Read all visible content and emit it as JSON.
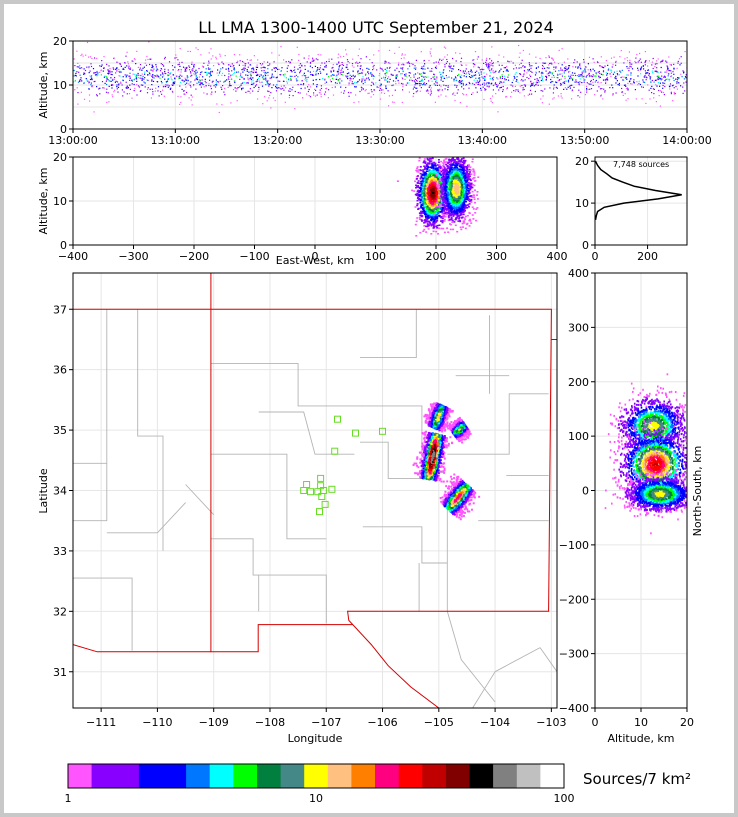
{
  "title": "LL LMA 1300-1400 UTC September 21, 2024",
  "colors": {
    "state_border": "#d40000",
    "county_border": "#b4b4b4",
    "station_marker": "#66dd22",
    "density_profile": "#000000"
  },
  "colorbar": {
    "label": "Sources/7 km²",
    "ticks": [
      "1",
      "10",
      "100"
    ],
    "colors": [
      "#ff55ff",
      "#8800ff",
      "#8800ff",
      "#0000ff",
      "#0000ff",
      "#0077ff",
      "#00ffff",
      "#00ff00",
      "#007f3f",
      "#448888",
      "#ffff00",
      "#ffc080",
      "#ff8000",
      "#ff0080",
      "#ff0000",
      "#c00000",
      "#800000",
      "#000000",
      "#808080",
      "#c0c0c0",
      "#ffffff"
    ]
  },
  "source_count_label": "7,748 sources",
  "chart_data": [
    {
      "id": "time-height",
      "type": "scatter",
      "xlabel": "",
      "ylabel": "Altitude, km",
      "xlim": [
        "13:00:00",
        "14:00:00"
      ],
      "ylim": [
        0,
        20
      ],
      "xticks": [
        "13:00:00",
        "13:10:00",
        "13:20:00",
        "13:30:00",
        "13:40:00",
        "13:50:00",
        "14:00:00"
      ],
      "yticks": [
        "0",
        "10",
        "20"
      ],
      "band_center_km": 12,
      "band_spread_km": 4
    },
    {
      "id": "east-west-altitude",
      "type": "heatmap",
      "xlabel": "East-West, km",
      "ylabel": "Altitude, km",
      "xlim": [
        -400,
        400
      ],
      "ylim": [
        0,
        20
      ],
      "xticks": [
        "−400",
        "−300",
        "−200",
        "−100",
        "0",
        "100",
        "200",
        "300",
        "400"
      ],
      "yticks": [
        "0",
        "10",
        "20"
      ],
      "clusters": [
        {
          "x": 193,
          "y": 12,
          "sx": 12,
          "sy": 3.5,
          "peak": 1.0
        },
        {
          "x": 232,
          "y": 13,
          "sx": 12,
          "sy": 3.5,
          "peak": 0.7
        }
      ]
    },
    {
      "id": "altitude-histogram",
      "type": "line",
      "xlabel": "",
      "ylabel": "",
      "xlim": [
        0,
        350
      ],
      "ylim": [
        0,
        21
      ],
      "xticks": [
        "0",
        "200"
      ],
      "yticks": [
        "0",
        "10",
        "20"
      ],
      "profile": [
        {
          "alt": 6,
          "count": 2
        },
        {
          "alt": 7,
          "count": 5
        },
        {
          "alt": 8,
          "count": 10
        },
        {
          "alt": 9,
          "count": 35
        },
        {
          "alt": 10,
          "count": 110
        },
        {
          "alt": 11,
          "count": 240
        },
        {
          "alt": 12,
          "count": 330
        },
        {
          "alt": 13,
          "count": 230
        },
        {
          "alt": 14,
          "count": 150
        },
        {
          "alt": 15,
          "count": 105
        },
        {
          "alt": 16,
          "count": 65
        },
        {
          "alt": 17,
          "count": 45
        },
        {
          "alt": 18,
          "count": 22
        },
        {
          "alt": 19,
          "count": 10
        },
        {
          "alt": 20,
          "count": 2
        }
      ]
    },
    {
      "id": "plan-view",
      "type": "heatmap",
      "xlabel": "Longitude",
      "ylabel": "Latitude",
      "xlim": [
        -111.5,
        -102.9
      ],
      "ylim": [
        30.4,
        37.6
      ],
      "xticks": [
        "−111",
        "−110",
        "−109",
        "−108",
        "−107",
        "−106",
        "−105",
        "−104",
        "−103"
      ],
      "yticks": [
        "31",
        "32",
        "33",
        "34",
        "35",
        "36",
        "37"
      ],
      "stations": [
        {
          "lon": -106.8,
          "lat": 35.18
        },
        {
          "lon": -106.48,
          "lat": 34.95
        },
        {
          "lon": -106.0,
          "lat": 34.98
        },
        {
          "lon": -106.85,
          "lat": 34.65
        },
        {
          "lon": -107.1,
          "lat": 34.2
        },
        {
          "lon": -107.35,
          "lat": 34.1
        },
        {
          "lon": -107.1,
          "lat": 34.08
        },
        {
          "lon": -107.4,
          "lat": 34.0
        },
        {
          "lon": -107.28,
          "lat": 33.98
        },
        {
          "lon": -107.15,
          "lat": 33.98
        },
        {
          "lon": -107.05,
          "lat": 34.0
        },
        {
          "lon": -106.9,
          "lat": 34.02
        },
        {
          "lon": -107.08,
          "lat": 33.9
        },
        {
          "lon": -107.02,
          "lat": 33.77
        },
        {
          "lon": -107.12,
          "lat": 33.65
        }
      ],
      "cells": [
        {
          "x1": -104.95,
          "y1": 35.42,
          "x2": -105.1,
          "y2": 35.05,
          "w": 0.08,
          "peak": 0.6
        },
        {
          "x1": -104.55,
          "y1": 35.1,
          "x2": -104.75,
          "y2": 34.95,
          "w": 0.07,
          "peak": 0.55
        },
        {
          "x1": -105.05,
          "y1": 34.95,
          "x2": -105.2,
          "y2": 34.2,
          "w": 0.1,
          "peak": 1.0
        },
        {
          "x1": -104.5,
          "y1": 34.1,
          "x2": -104.85,
          "y2": 33.7,
          "w": 0.1,
          "peak": 0.75
        }
      ]
    },
    {
      "id": "altitude-north-south",
      "type": "heatmap",
      "xlabel": "Altitude, km",
      "ylabel": "North-South, km",
      "xlim": [
        0,
        20
      ],
      "ylim": [
        -400,
        400
      ],
      "xticks": [
        "0",
        "10",
        "20"
      ],
      "yticks": [
        "−400",
        "−300",
        "−200",
        "−100",
        "0",
        "100",
        "200",
        "300",
        "400"
      ],
      "clusters": [
        {
          "x": 12.5,
          "y": 120,
          "sx": 3.5,
          "sy": 25,
          "peak": 0.7
        },
        {
          "x": 13,
          "y": 50,
          "sx": 3.5,
          "sy": 28,
          "peak": 1.0
        },
        {
          "x": 14,
          "y": -5,
          "sx": 3.5,
          "sy": 15,
          "peak": 0.7
        }
      ]
    }
  ]
}
